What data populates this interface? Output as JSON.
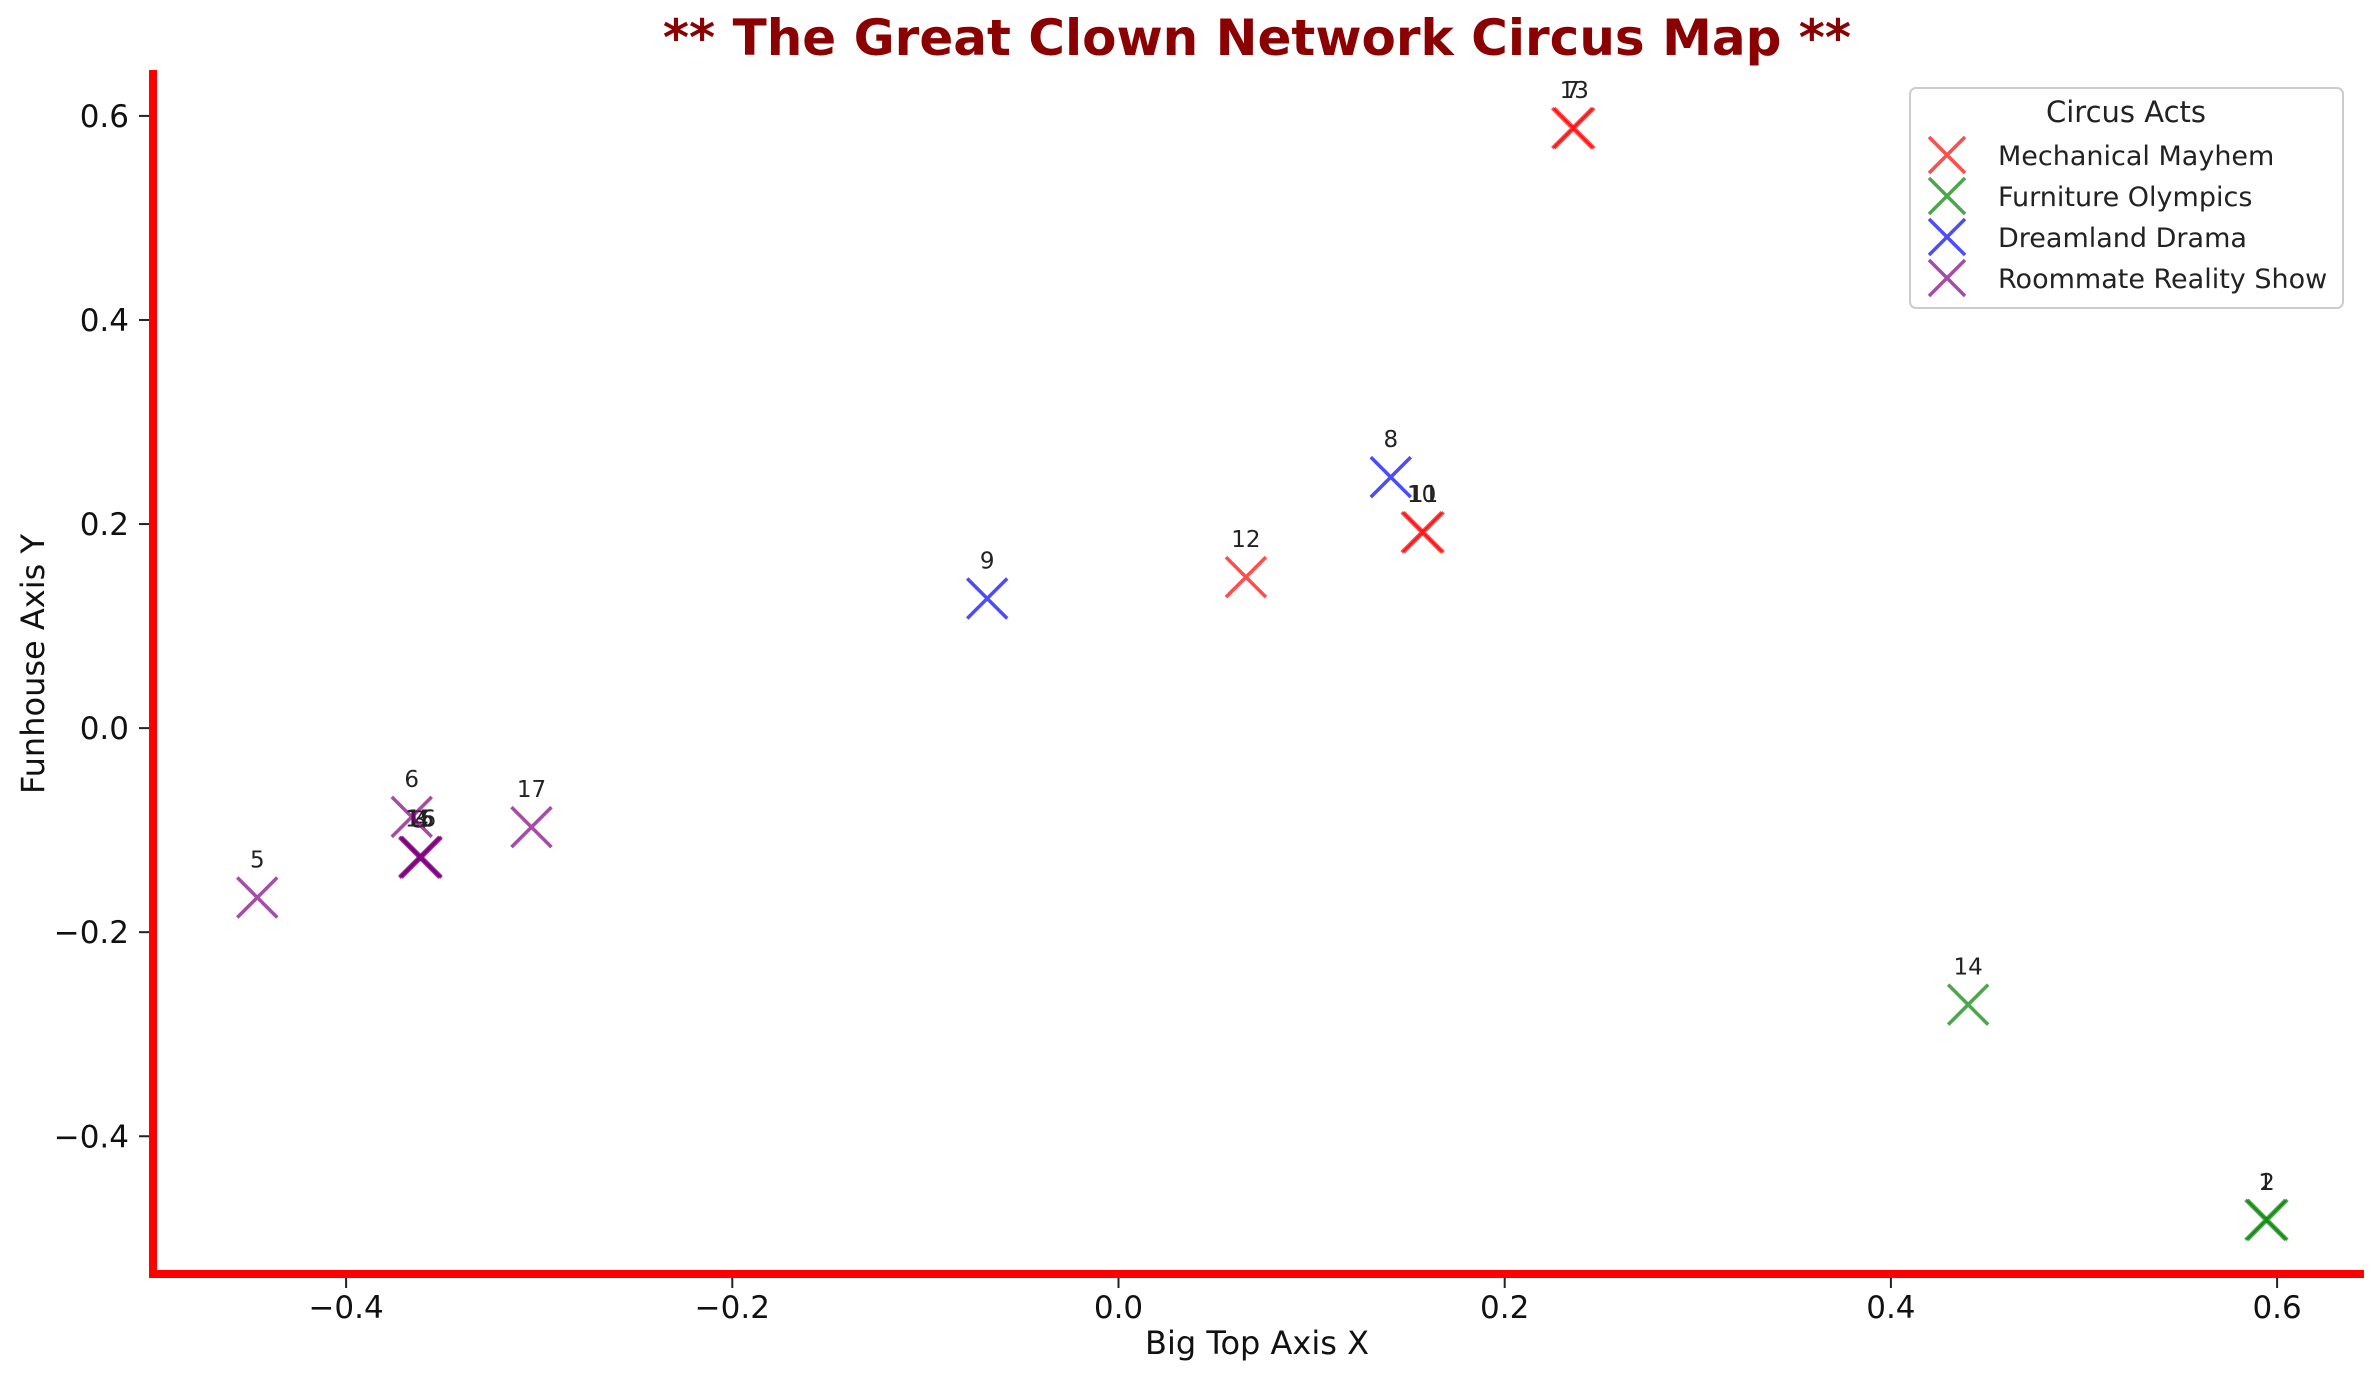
{
  "chart_data": {
    "type": "scatter",
    "title": "** The Great Clown Network Circus Map **",
    "xlabel": "Big Top Axis X",
    "ylabel": "Funhouse Axis Y",
    "xlim": [
      -0.5,
      0.645
    ],
    "ylim": [
      -0.535,
      0.645
    ],
    "xticks": [
      -0.4,
      -0.2,
      0.0,
      0.2,
      0.4,
      0.6
    ],
    "yticks": [
      -0.4,
      -0.2,
      0.0,
      0.2,
      0.4,
      0.6
    ],
    "xtick_labels": [
      "−0.4",
      "−0.2",
      "0.0",
      "0.2",
      "0.4",
      "0.6"
    ],
    "ytick_labels": [
      "−0.4",
      "−0.2",
      "0.0",
      "0.2",
      "0.4",
      "0.6"
    ],
    "grid": false,
    "marker": "x",
    "spine_color": "#ff0000",
    "title_color": "#8b0000",
    "legend": {
      "title": "Circus Acts",
      "position": "top-right"
    },
    "series": [
      {
        "name": "Mechanical Mayhem",
        "color": "#ff0000",
        "points": [
          {
            "label": "7",
            "x": 0.235,
            "y": 0.588
          },
          {
            "label": "13",
            "x": 0.236,
            "y": 0.588
          },
          {
            "label": "10",
            "x": 0.157,
            "y": 0.192
          },
          {
            "label": "11",
            "x": 0.158,
            "y": 0.192
          },
          {
            "label": "12",
            "x": 0.066,
            "y": 0.148
          }
        ]
      },
      {
        "name": "Furniture Olympics",
        "color": "#008000",
        "points": [
          {
            "label": "1",
            "x": 0.594,
            "y": -0.482
          },
          {
            "label": "2",
            "x": 0.595,
            "y": -0.482
          },
          {
            "label": "14",
            "x": 0.44,
            "y": -0.271
          }
        ]
      },
      {
        "name": "Dreamland Drama",
        "color": "#0000ff",
        "points": [
          {
            "label": "8",
            "x": 0.141,
            "y": 0.246
          },
          {
            "label": "9",
            "x": -0.068,
            "y": 0.127
          }
        ]
      },
      {
        "name": "Roommate Reality Show",
        "color": "#800080",
        "points": [
          {
            "label": "3",
            "x": -0.362,
            "y": -0.127
          },
          {
            "label": "4",
            "x": -0.361,
            "y": -0.127
          },
          {
            "label": "15",
            "x": -0.362,
            "y": -0.126
          },
          {
            "label": "16",
            "x": -0.361,
            "y": -0.126
          },
          {
            "label": "5",
            "x": -0.446,
            "y": -0.166
          },
          {
            "label": "6",
            "x": -0.366,
            "y": -0.087
          },
          {
            "label": "17",
            "x": -0.304,
            "y": -0.097
          }
        ]
      }
    ]
  }
}
